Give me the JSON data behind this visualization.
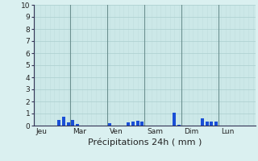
{
  "title": "Précipitations 24h ( mm )",
  "ylabel_values": [
    0,
    1,
    2,
    3,
    4,
    5,
    6,
    7,
    8,
    9,
    10
  ],
  "ylim": [
    0,
    10
  ],
  "background_color": "#daf0f0",
  "plot_background": "#cce8e8",
  "grid_color_major": "#aacece",
  "grid_color_minor": "#c0dede",
  "bar_color": "#1a4fd6",
  "day_labels": [
    "Jeu",
    "Mar",
    "Ven",
    "Sam",
    "Dim",
    "Lun"
  ],
  "day_positions": [
    0,
    8,
    16,
    24,
    32,
    40
  ],
  "n_bars": 48,
  "bar_data": [
    0,
    0,
    0,
    0,
    0,
    0.5,
    0.75,
    0.3,
    0.45,
    0.15,
    0,
    0,
    0,
    0,
    0,
    0,
    0.2,
    0,
    0,
    0,
    0.3,
    0.35,
    0.4,
    0.35,
    0,
    0,
    0,
    0,
    0,
    0,
    1.05,
    0.05,
    0,
    0,
    0,
    0,
    0.6,
    0.35,
    0.35,
    0.35,
    0,
    0,
    0,
    0,
    0,
    0,
    0,
    0
  ],
  "separator_color": "#6b8f8f",
  "axis_color": "#333355",
  "tick_fontsize": 6.5,
  "xlabel_fontsize": 8
}
